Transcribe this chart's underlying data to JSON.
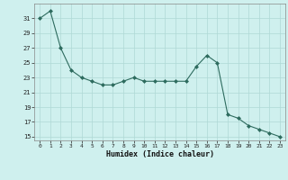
{
  "x": [
    0,
    1,
    2,
    3,
    4,
    5,
    6,
    7,
    8,
    9,
    10,
    11,
    12,
    13,
    14,
    15,
    16,
    17,
    18,
    19,
    20,
    21,
    22,
    23
  ],
  "y": [
    31,
    32,
    27,
    24,
    23,
    22.5,
    22,
    22,
    22.5,
    23,
    22.5,
    22.5,
    22.5,
    22.5,
    22.5,
    24.5,
    26,
    25,
    18,
    17.5,
    16.5,
    16,
    15.5,
    15
  ],
  "line_color": "#2d6b5e",
  "marker": "D",
  "marker_size": 2,
  "background_color": "#cff0ee",
  "grid_color": "#afd8d5",
  "xlabel": "Humidex (Indice chaleur)",
  "xlim": [
    -0.5,
    23.5
  ],
  "ylim": [
    14.5,
    33
  ],
  "yticks": [
    15,
    17,
    19,
    21,
    23,
    25,
    27,
    29,
    31
  ],
  "xticks": [
    0,
    1,
    2,
    3,
    4,
    5,
    6,
    7,
    8,
    9,
    10,
    11,
    12,
    13,
    14,
    15,
    16,
    17,
    18,
    19,
    20,
    21,
    22,
    23
  ]
}
